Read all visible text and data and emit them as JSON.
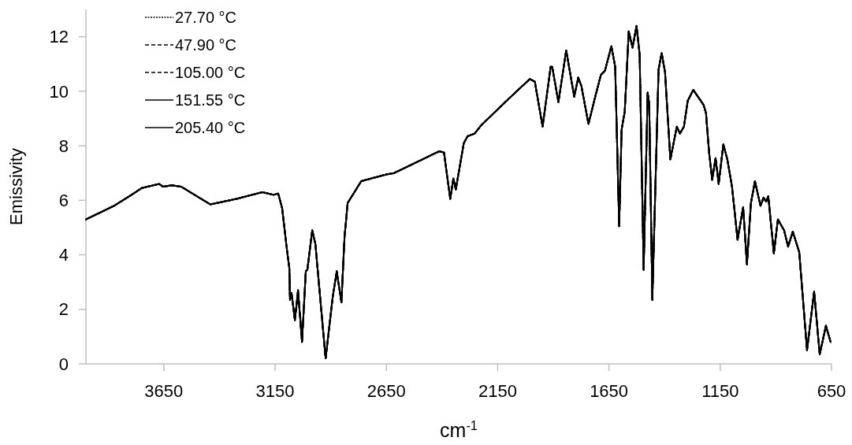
{
  "chart_data": {
    "type": "line",
    "xlabel": "cm$^{-1}$",
    "ylabel": "Emissivity",
    "xlim": [
      4000,
      650
    ],
    "xticks": [
      3650,
      3150,
      2650,
      2150,
      1650,
      1150,
      650
    ],
    "ylim": [
      0,
      13
    ],
    "yticks": [
      0,
      2,
      4,
      6,
      8,
      10,
      12
    ],
    "grid": false,
    "legend": "top left",
    "marker": "none",
    "x": [
      4000,
      3873,
      3795,
      3749,
      3671,
      3654,
      3615,
      3572,
      3441,
      3324,
      3207,
      3157,
      3136,
      3118,
      3100,
      3086,
      3083,
      3076,
      3061,
      3047,
      3029,
      3012,
      3005,
      2983,
      2969,
      2923,
      2891,
      2873,
      2852,
      2838,
      2824,
      2763,
      2650,
      2615,
      2437,
      2412,
      2391,
      2363,
      2349,
      2338,
      2302,
      2285,
      2253,
      2224,
      2129,
      2058,
      2005,
      1983,
      1948,
      1912,
      1905,
      1877,
      1842,
      1806,
      1788,
      1774,
      1742,
      1710,
      1686,
      1668,
      1639,
      1622,
      1604,
      1593,
      1579,
      1561,
      1544,
      1526,
      1512,
      1494,
      1476,
      1469,
      1455,
      1427,
      1413,
      1398,
      1374,
      1345,
      1331,
      1313,
      1296,
      1271,
      1225,
      1214,
      1200,
      1186,
      1171,
      1157,
      1136,
      1118,
      1097,
      1072,
      1047,
      1030,
      1012,
      994,
      969,
      955,
      944,
      934,
      909,
      891,
      863,
      845,
      824,
      795,
      760,
      728,
      703,
      675,
      654
    ],
    "series": [
      {
        "name": "27.70 °C",
        "color": "#000000",
        "line_style": "dotted",
        "values": [
          5.3,
          5.8,
          6.2,
          6.45,
          6.6,
          6.5,
          6.55,
          6.5,
          5.85,
          6.05,
          6.3,
          6.2,
          6.25,
          5.7,
          4.4,
          3.5,
          2.35,
          2.6,
          1.6,
          2.7,
          0.8,
          3.4,
          3.45,
          4.9,
          4.4,
          0.2,
          2.45,
          3.4,
          2.25,
          4.65,
          5.9,
          6.7,
          6.95,
          7.0,
          7.7,
          7.8,
          7.75,
          6.05,
          6.8,
          6.4,
          8.1,
          8.35,
          8.45,
          8.75,
          9.5,
          10.05,
          10.45,
          10.35,
          8.7,
          10.9,
          10.9,
          9.6,
          11.5,
          9.8,
          10.5,
          10.2,
          8.8,
          9.85,
          10.6,
          10.75,
          11.65,
          10.9,
          5.05,
          8.6,
          9.25,
          12.2,
          11.6,
          12.4,
          11.35,
          3.45,
          9.95,
          9.55,
          2.35,
          10.8,
          11.4,
          10.7,
          7.5,
          8.7,
          8.45,
          8.7,
          9.65,
          10.05,
          9.5,
          9.2,
          7.75,
          6.75,
          7.55,
          6.6,
          8.05,
          7.5,
          6.5,
          4.55,
          5.75,
          3.65,
          5.9,
          6.7,
          5.8,
          6.1,
          5.95,
          6.15,
          4.05,
          5.3,
          4.9,
          4.3,
          4.85,
          4.1,
          0.5,
          2.65,
          0.35,
          1.4,
          0.8
        ]
      },
      {
        "name": "47.90 °C",
        "color": "#000000",
        "line_style": "dashed",
        "values": [
          5.3,
          5.8,
          6.2,
          6.45,
          6.6,
          6.5,
          6.55,
          6.5,
          5.85,
          6.05,
          6.3,
          6.2,
          6.25,
          5.7,
          4.4,
          3.5,
          2.35,
          2.6,
          1.6,
          2.7,
          0.8,
          3.4,
          3.45,
          4.9,
          4.4,
          0.2,
          2.45,
          3.4,
          2.25,
          4.65,
          5.9,
          6.7,
          6.95,
          7.0,
          7.7,
          7.8,
          7.75,
          6.05,
          6.8,
          6.4,
          8.1,
          8.35,
          8.45,
          8.75,
          9.5,
          10.05,
          10.45,
          10.35,
          8.7,
          10.9,
          10.9,
          9.6,
          11.5,
          9.8,
          10.5,
          10.2,
          8.8,
          9.85,
          10.6,
          10.75,
          11.65,
          10.9,
          5.05,
          8.6,
          9.25,
          12.2,
          11.6,
          12.4,
          11.35,
          3.45,
          9.95,
          9.55,
          2.35,
          10.8,
          11.4,
          10.7,
          7.5,
          8.7,
          8.45,
          8.7,
          9.65,
          10.05,
          9.5,
          9.2,
          7.75,
          6.75,
          7.55,
          6.6,
          8.05,
          7.5,
          6.5,
          4.55,
          5.75,
          3.65,
          5.9,
          6.7,
          5.8,
          6.1,
          5.95,
          6.15,
          4.05,
          5.3,
          4.9,
          4.3,
          4.85,
          4.1,
          0.5,
          2.65,
          0.35,
          1.4,
          0.8
        ]
      },
      {
        "name": "105.00 °C",
        "color": "#000000",
        "line_style": "dashed",
        "values": [
          5.3,
          5.8,
          6.2,
          6.45,
          6.6,
          6.5,
          6.55,
          6.5,
          5.85,
          6.05,
          6.3,
          6.2,
          6.25,
          5.7,
          4.4,
          3.5,
          2.35,
          2.6,
          1.6,
          2.7,
          0.8,
          3.4,
          3.45,
          4.9,
          4.4,
          0.2,
          2.45,
          3.4,
          2.25,
          4.65,
          5.9,
          6.7,
          6.95,
          7.0,
          7.7,
          7.8,
          7.75,
          6.05,
          6.8,
          6.4,
          8.1,
          8.35,
          8.45,
          8.75,
          9.5,
          10.05,
          10.45,
          10.35,
          8.7,
          10.9,
          10.9,
          9.6,
          11.5,
          9.8,
          10.5,
          10.2,
          8.8,
          9.85,
          10.6,
          10.75,
          11.65,
          10.9,
          5.05,
          8.6,
          9.25,
          12.2,
          11.6,
          12.4,
          11.35,
          3.45,
          9.95,
          9.55,
          2.35,
          10.8,
          11.4,
          10.7,
          7.5,
          8.7,
          8.45,
          8.7,
          9.65,
          10.05,
          9.5,
          9.2,
          7.75,
          6.75,
          7.55,
          6.6,
          8.05,
          7.5,
          6.5,
          4.55,
          5.75,
          3.65,
          5.9,
          6.7,
          5.8,
          6.1,
          5.95,
          6.15,
          4.05,
          5.3,
          4.9,
          4.3,
          4.85,
          4.1,
          0.5,
          2.65,
          0.35,
          1.4,
          0.8
        ]
      },
      {
        "name": "151.55 °C",
        "color": "#000000",
        "line_style": "solid",
        "values": [
          5.3,
          5.8,
          6.2,
          6.45,
          6.6,
          6.5,
          6.55,
          6.5,
          5.85,
          6.05,
          6.3,
          6.2,
          6.25,
          5.7,
          4.4,
          3.5,
          2.35,
          2.6,
          1.6,
          2.7,
          0.8,
          3.4,
          3.45,
          4.9,
          4.4,
          0.2,
          2.45,
          3.4,
          2.25,
          4.65,
          5.9,
          6.7,
          6.95,
          7.0,
          7.7,
          7.8,
          7.75,
          6.05,
          6.8,
          6.4,
          8.1,
          8.35,
          8.45,
          8.75,
          9.5,
          10.05,
          10.45,
          10.35,
          8.7,
          10.9,
          10.9,
          9.6,
          11.5,
          9.8,
          10.5,
          10.2,
          8.8,
          9.85,
          10.6,
          10.75,
          11.65,
          10.9,
          5.05,
          8.6,
          9.25,
          12.2,
          11.6,
          12.4,
          11.35,
          3.45,
          9.95,
          9.55,
          2.35,
          10.8,
          11.4,
          10.7,
          7.5,
          8.7,
          8.45,
          8.7,
          9.65,
          10.05,
          9.5,
          9.2,
          7.75,
          6.75,
          7.55,
          6.6,
          8.05,
          7.5,
          6.5,
          4.55,
          5.75,
          3.65,
          5.9,
          6.7,
          5.8,
          6.1,
          5.95,
          6.15,
          4.05,
          5.3,
          4.9,
          4.3,
          4.85,
          4.1,
          0.5,
          2.65,
          0.35,
          1.4,
          0.8
        ]
      },
      {
        "name": "205.40 °C",
        "color": "#000000",
        "line_style": "solid",
        "values": [
          5.3,
          5.8,
          6.2,
          6.45,
          6.6,
          6.5,
          6.55,
          6.5,
          5.85,
          6.05,
          6.3,
          6.2,
          6.25,
          5.7,
          4.4,
          3.5,
          2.35,
          2.6,
          1.6,
          2.7,
          0.8,
          3.4,
          3.45,
          4.9,
          4.4,
          0.2,
          2.45,
          3.4,
          2.25,
          4.65,
          5.9,
          6.7,
          6.95,
          7.0,
          7.7,
          7.8,
          7.75,
          6.05,
          6.8,
          6.4,
          8.1,
          8.35,
          8.45,
          8.75,
          9.5,
          10.05,
          10.45,
          10.35,
          8.7,
          10.9,
          10.9,
          9.6,
          11.5,
          9.8,
          10.5,
          10.2,
          8.8,
          9.85,
          10.6,
          10.75,
          11.65,
          10.9,
          5.05,
          8.6,
          9.25,
          12.2,
          11.6,
          12.4,
          11.35,
          3.45,
          9.95,
          9.55,
          2.35,
          10.8,
          11.4,
          10.7,
          7.5,
          8.7,
          8.45,
          8.7,
          9.65,
          10.05,
          9.5,
          9.2,
          7.75,
          6.75,
          7.55,
          6.6,
          8.05,
          7.5,
          6.5,
          4.55,
          5.75,
          3.65,
          5.9,
          6.7,
          5.8,
          6.1,
          5.95,
          6.15,
          4.05,
          5.3,
          4.9,
          4.3,
          4.85,
          4.1,
          0.5,
          2.65,
          0.35,
          1.4,
          0.8
        ]
      }
    ]
  }
}
